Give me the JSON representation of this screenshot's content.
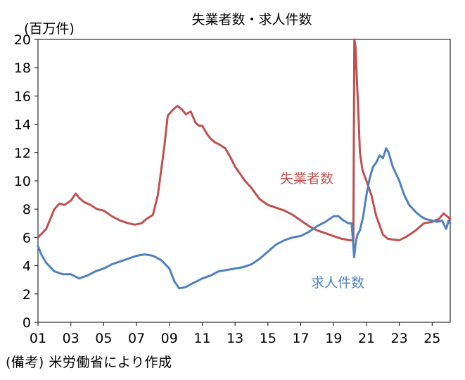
{
  "chart_data": {
    "type": "line",
    "title": "失業者数・求人件数",
    "unit_label": "(百万件)",
    "ylim": [
      0,
      20
    ],
    "y_ticks": [
      0,
      2,
      4,
      6,
      8,
      10,
      12,
      14,
      16,
      18,
      20
    ],
    "xlim": [
      2001.0,
      2026.1
    ],
    "x_tick_values": [
      2001,
      2003,
      2005,
      2007,
      2009,
      2011,
      2013,
      2015,
      2017,
      2019,
      2021,
      2023,
      2025
    ],
    "x_tick_labels": [
      "01",
      "03",
      "05",
      "07",
      "09",
      "11",
      "13",
      "15",
      "17",
      "19",
      "21",
      "23",
      "25"
    ],
    "grid": false,
    "series": [
      {
        "name": "失業者数",
        "color": "#c0504d",
        "x": [
          2001.0,
          2001.5,
          2002.0,
          2002.3,
          2002.6,
          2003.0,
          2003.3,
          2003.5,
          2003.8,
          2004.2,
          2004.6,
          2005.0,
          2005.5,
          2006.0,
          2006.5,
          2006.9,
          2007.3,
          2007.6,
          2008.0,
          2008.3,
          2008.7,
          2008.9,
          2009.2,
          2009.5,
          2009.8,
          2010.0,
          2010.3,
          2010.6,
          2010.8,
          2011.0,
          2011.3,
          2011.5,
          2011.8,
          2012.0,
          2012.4,
          2012.7,
          2013.0,
          2013.3,
          2013.6,
          2014.0,
          2014.5,
          2015.0,
          2015.5,
          2016.0,
          2016.5,
          2017.0,
          2017.5,
          2018.0,
          2018.5,
          2019.0,
          2019.5,
          2020.0,
          2020.15,
          2020.2,
          2020.26,
          2020.33,
          2020.42,
          2020.5,
          2020.6,
          2020.75,
          2020.9,
          2021.0,
          2021.3,
          2021.6,
          2022.0,
          2022.3,
          2022.6,
          2023.0,
          2023.5,
          2024.0,
          2024.5,
          2025.0,
          2025.4,
          2025.7,
          2026.0,
          2026.1
        ],
        "values": [
          6.0,
          6.6,
          8.0,
          8.4,
          8.3,
          8.6,
          9.1,
          8.8,
          8.5,
          8.3,
          8.0,
          7.9,
          7.5,
          7.2,
          7.0,
          6.9,
          7.0,
          7.3,
          7.6,
          9.0,
          12.5,
          14.6,
          15.0,
          15.3,
          15.0,
          14.7,
          14.9,
          14.1,
          13.9,
          13.9,
          13.3,
          13.0,
          12.7,
          12.6,
          12.3,
          11.7,
          11.0,
          10.5,
          10.0,
          9.5,
          8.7,
          8.3,
          8.1,
          7.9,
          7.6,
          7.2,
          6.8,
          6.5,
          6.3,
          6.1,
          5.9,
          5.8,
          5.8,
          5.8,
          20.0,
          19.5,
          17.0,
          15.0,
          12.0,
          10.8,
          10.3,
          10.0,
          9.0,
          7.5,
          6.2,
          5.9,
          5.85,
          5.8,
          6.1,
          6.5,
          7.0,
          7.1,
          7.3,
          7.7,
          7.4,
          7.3
        ]
      },
      {
        "name": "求人件数",
        "color": "#4f81bd",
        "x": [
          2001.0,
          2001.2,
          2001.5,
          2002.0,
          2002.5,
          2003.0,
          2003.5,
          2004.0,
          2004.5,
          2005.0,
          2005.5,
          2006.0,
          2006.5,
          2007.0,
          2007.5,
          2008.0,
          2008.5,
          2009.0,
          2009.3,
          2009.6,
          2010.0,
          2010.5,
          2011.0,
          2011.5,
          2012.0,
          2012.5,
          2013.0,
          2013.5,
          2014.0,
          2014.5,
          2015.0,
          2015.5,
          2016.0,
          2016.5,
          2017.0,
          2017.5,
          2018.0,
          2018.5,
          2019.0,
          2019.3,
          2019.6,
          2019.9,
          2020.1,
          2020.25,
          2020.35,
          2020.45,
          2020.6,
          2020.8,
          2021.0,
          2021.2,
          2021.4,
          2021.6,
          2021.8,
          2022.0,
          2022.2,
          2022.35,
          2022.6,
          2022.8,
          2023.0,
          2023.3,
          2023.6,
          2024.0,
          2024.3,
          2024.6,
          2025.0,
          2025.3,
          2025.6,
          2025.85,
          2026.0,
          2026.1
        ],
        "values": [
          5.4,
          4.8,
          4.2,
          3.6,
          3.4,
          3.4,
          3.1,
          3.3,
          3.6,
          3.8,
          4.1,
          4.3,
          4.5,
          4.7,
          4.8,
          4.7,
          4.4,
          3.8,
          2.9,
          2.4,
          2.5,
          2.8,
          3.1,
          3.3,
          3.6,
          3.7,
          3.8,
          3.9,
          4.1,
          4.5,
          5.0,
          5.5,
          5.8,
          6.0,
          6.1,
          6.4,
          6.8,
          7.1,
          7.5,
          7.5,
          7.2,
          7.0,
          7.0,
          4.6,
          5.7,
          6.2,
          6.5,
          7.5,
          9.0,
          10.2,
          11.0,
          11.3,
          11.8,
          11.6,
          12.3,
          12.0,
          11.0,
          10.5,
          10.0,
          9.0,
          8.3,
          7.8,
          7.5,
          7.3,
          7.2,
          7.1,
          7.2,
          6.6,
          7.2,
          7.0
        ]
      }
    ]
  },
  "note": "(備考) 米労働省により作成"
}
